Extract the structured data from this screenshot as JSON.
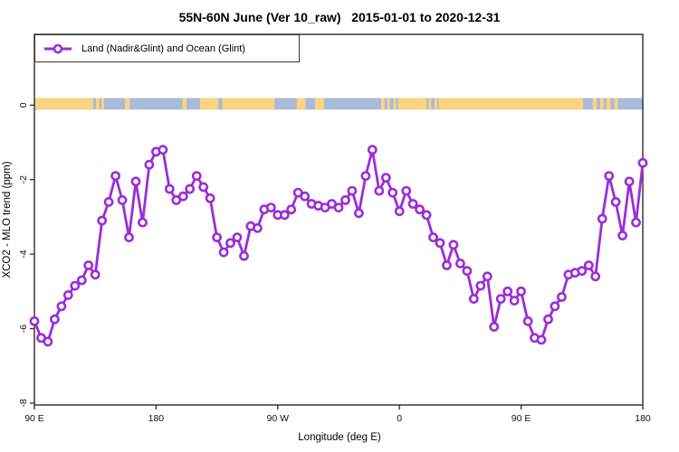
{
  "chart_data": {
    "type": "line",
    "title": "55N-60N June (Ver 10_raw)   2015-01-01 to 2020-12-31",
    "xlabel": "Longitude (deg E)",
    "ylabel": "XCO2 - MLO trend (ppm)",
    "legend_position": "top-left",
    "grid": false,
    "xlim": [
      90,
      540
    ],
    "ylim": [
      -8.05,
      1.9
    ],
    "x_ticks": [
      {
        "v": 90,
        "label": "90 E"
      },
      {
        "v": 180,
        "label": "180"
      },
      {
        "v": 270,
        "label": "90 W"
      },
      {
        "v": 360,
        "label": "0"
      },
      {
        "v": 450,
        "label": "90 E"
      },
      {
        "v": 540,
        "label": "180"
      }
    ],
    "y_ticks": [
      {
        "v": 0,
        "label": "0"
      },
      {
        "v": -2,
        "label": "-2"
      },
      {
        "v": -4,
        "label": "-4"
      },
      {
        "v": -6,
        "label": "-6"
      },
      {
        "v": -8,
        "label": "-8"
      }
    ],
    "band": {
      "description": "land-ocean strip along 55N-60N",
      "top": 0.19,
      "bottom": -0.12,
      "ocean_color": "#A8BBD8",
      "land_color": "#FBD483",
      "land_segments": [
        [
          90,
          133.5
        ],
        [
          135.5,
          138
        ],
        [
          139.5,
          141.5
        ],
        [
          157,
          160.5
        ],
        [
          199.5,
          202.5
        ],
        [
          212.5,
          226
        ],
        [
          229,
          267.5
        ],
        [
          284,
          290.5
        ],
        [
          297.5,
          304
        ],
        [
          346.5,
          349
        ],
        [
          351,
          353
        ],
        [
          355.5,
          357.5
        ],
        [
          359,
          380
        ],
        [
          381.5,
          383.5
        ],
        [
          386,
          388
        ],
        [
          389,
          496
        ],
        [
          503,
          506
        ],
        [
          508.5,
          511
        ],
        [
          513,
          516
        ],
        [
          519,
          521.5
        ]
      ]
    },
    "series": [
      {
        "name": "Land (Nadir&Glint) and Ocean (Glint)",
        "color": "#9B2DD9",
        "marker": "open-circle",
        "x_start": 90,
        "x_step": 5,
        "values": [
          -5.8,
          -6.25,
          -6.35,
          -5.75,
          -5.4,
          -5.1,
          -4.85,
          -4.7,
          -4.3,
          -4.55,
          -3.1,
          -2.6,
          -1.9,
          -2.55,
          -3.55,
          -2.05,
          -3.15,
          -1.6,
          -1.25,
          -1.2,
          -2.25,
          -2.55,
          -2.45,
          -2.25,
          -1.9,
          -2.2,
          -2.5,
          -3.55,
          -3.95,
          -3.7,
          -3.55,
          -4.05,
          -3.25,
          -3.3,
          -2.8,
          -2.75,
          -2.95,
          -2.95,
          -2.8,
          -2.35,
          -2.45,
          -2.65,
          -2.7,
          -2.75,
          -2.65,
          -2.75,
          -2.55,
          -2.3,
          -2.9,
          -1.9,
          -1.2,
          -2.3,
          -1.95,
          -2.35,
          -2.85,
          -2.3,
          -2.65,
          -2.8,
          -2.95,
          -3.55,
          -3.7,
          -4.3,
          -3.75,
          -4.25,
          -4.45,
          -5.2,
          -4.85,
          -4.6,
          -5.95,
          -5.2,
          -5.0,
          -5.25,
          -5.0,
          -5.8,
          -6.25,
          -6.3,
          -5.75,
          -5.4,
          -5.15,
          -4.55,
          -4.5,
          -4.45,
          -4.3,
          -4.6,
          -3.05,
          -1.9,
          -2.6,
          -3.5,
          -2.05,
          -3.15,
          -1.55
        ]
      }
    ],
    "legend": [
      "Land (Nadir&Glint) and Ocean (Glint)"
    ]
  }
}
